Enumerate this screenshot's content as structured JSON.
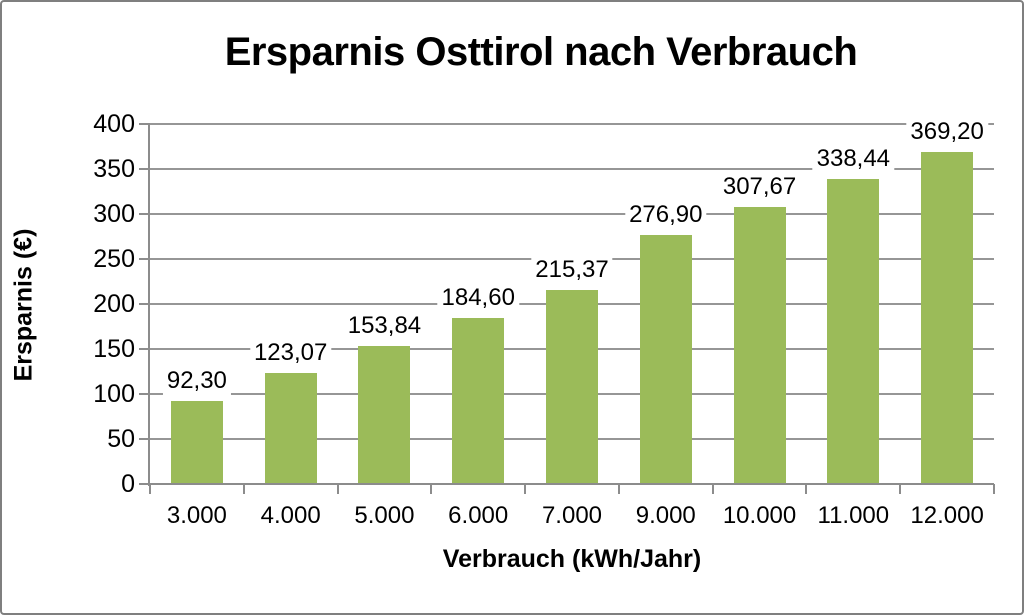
{
  "chart_data": {
    "type": "bar",
    "title": "Ersparnis Osttirol nach Verbrauch",
    "xlabel": "Verbrauch (kWh/Jahr)",
    "ylabel": "Ersparnis (€)",
    "categories": [
      "3.000",
      "4.000",
      "5.000",
      "6.000",
      "7.000",
      "9.000",
      "10.000",
      "11.000",
      "12.000"
    ],
    "values": [
      92.3,
      123.07,
      153.84,
      184.6,
      215.37,
      276.9,
      307.67,
      338.44,
      369.2
    ],
    "value_labels": [
      "92,30",
      "123,07",
      "153,84",
      "184,60",
      "215,37",
      "276,90",
      "307,67",
      "338,44",
      "369,20"
    ],
    "ylim": [
      0,
      400
    ],
    "ytick_interval": 50,
    "ytick_labels": [
      "0",
      "50",
      "100",
      "150",
      "200",
      "250",
      "300",
      "350",
      "400"
    ],
    "grid": true,
    "legend": false,
    "colors": {
      "bar": "#9BBB59",
      "gridline": "#969696",
      "axis": "#8C8C8C",
      "text": "#000000",
      "background": "#FFFFFF",
      "frame_border": "#7F7F7F"
    }
  }
}
